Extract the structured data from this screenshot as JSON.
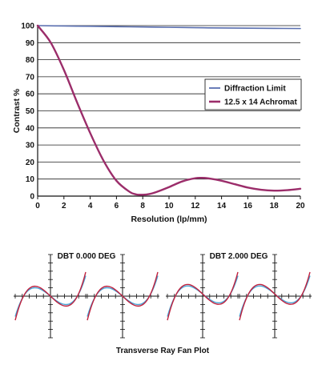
{
  "chart_data": [
    {
      "type": "line",
      "xlabel": "Resolution (lp/mm)",
      "ylabel": "Contrast %",
      "xlim": [
        0,
        20
      ],
      "ylim": [
        0,
        100
      ],
      "xticks": [
        "0",
        "2",
        "4",
        "6",
        "8",
        "10",
        "12",
        "14",
        "16",
        "18",
        "20"
      ],
      "yticks": [
        "0",
        "10",
        "20",
        "30",
        "40",
        "50",
        "60",
        "70",
        "80",
        "90",
        "100"
      ],
      "grid": "horizontal",
      "legend_position": "right",
      "series": [
        {
          "name": "Diffraction Limit",
          "color": "#5a6fb0",
          "x": [
            0,
            2,
            4,
            6,
            8,
            10,
            12,
            14,
            16,
            18,
            20
          ],
          "y": [
            100,
            99.8,
            99.6,
            99.4,
            99.2,
            99.0,
            98.8,
            98.6,
            98.5,
            98.4,
            98.3
          ]
        },
        {
          "name": "12.5 x 14 Achromat",
          "color": "#9b2d6a",
          "x": [
            0,
            1,
            2,
            3,
            4,
            5,
            6,
            7,
            7.5,
            8,
            8.5,
            9,
            10,
            11,
            12,
            12.5,
            13,
            14,
            15,
            16,
            17,
            18,
            19,
            20
          ],
          "y": [
            100,
            90,
            74,
            55,
            37,
            21,
            9,
            2.5,
            1,
            0.8,
            1.2,
            2.3,
            5.3,
            8.6,
            10.5,
            10.7,
            10.4,
            9.0,
            7.0,
            5.0,
            3.7,
            3.2,
            3.5,
            4.3
          ]
        }
      ]
    },
    {
      "type": "line",
      "title": "Transverse Ray Fan Plot",
      "groups": [
        {
          "label": "DBT 0.000 DEG"
        },
        {
          "label": "DBT 2.000 DEG"
        }
      ],
      "panels": 4,
      "series_colors": [
        "#4aa6d6",
        "#c0213e"
      ]
    }
  ]
}
